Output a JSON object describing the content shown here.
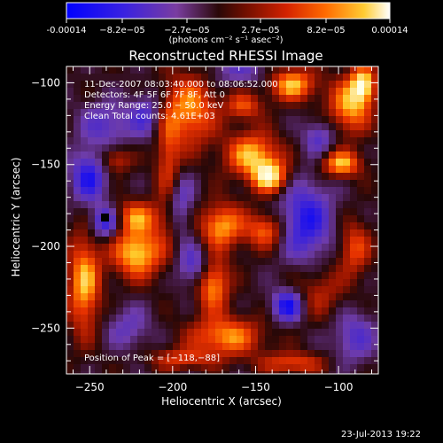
{
  "colorbar": {
    "tick_labels": [
      "-0.00014",
      "−8.2e−05",
      "−2.7e−05",
      "2.7e−05",
      "8.2e−05",
      "0.00014"
    ],
    "units": "(photons cm⁻² s⁻¹ asec⁻²)",
    "range": [
      -0.00014,
      0.00014
    ],
    "colors": [
      "#0000ff",
      "#4b22d6",
      "#7a3da0",
      "#3a0b0b",
      "#c01e00",
      "#ff5500",
      "#ffb000",
      "#ffffff"
    ]
  },
  "plot": {
    "title": "Reconstructed RHESSI Image",
    "x_label": "Heliocentric X (arcsec)",
    "y_label": "Heliocentric Y (arcsec)",
    "x_ticks": [
      "−250",
      "−200",
      "−150",
      "−100"
    ],
    "y_ticks": [
      "−100",
      "−150",
      "−200",
      "−250"
    ],
    "x_range": [
      -264,
      -76
    ],
    "y_range": [
      -278,
      -90
    ],
    "info_lines": [
      "11-Dec-2007 08:03:40.000 to 08:06:52.000",
      "Detectors: 4F 5F 6F 7F 8F, Att 0",
      "Energy Range: 25.0 − 50.0 keV",
      "Clean    Total counts: 4.61E+03"
    ],
    "peak_text": "Position of Peak = [−118,−88]"
  },
  "timestamp": "23-Jul-2013 19:22"
}
